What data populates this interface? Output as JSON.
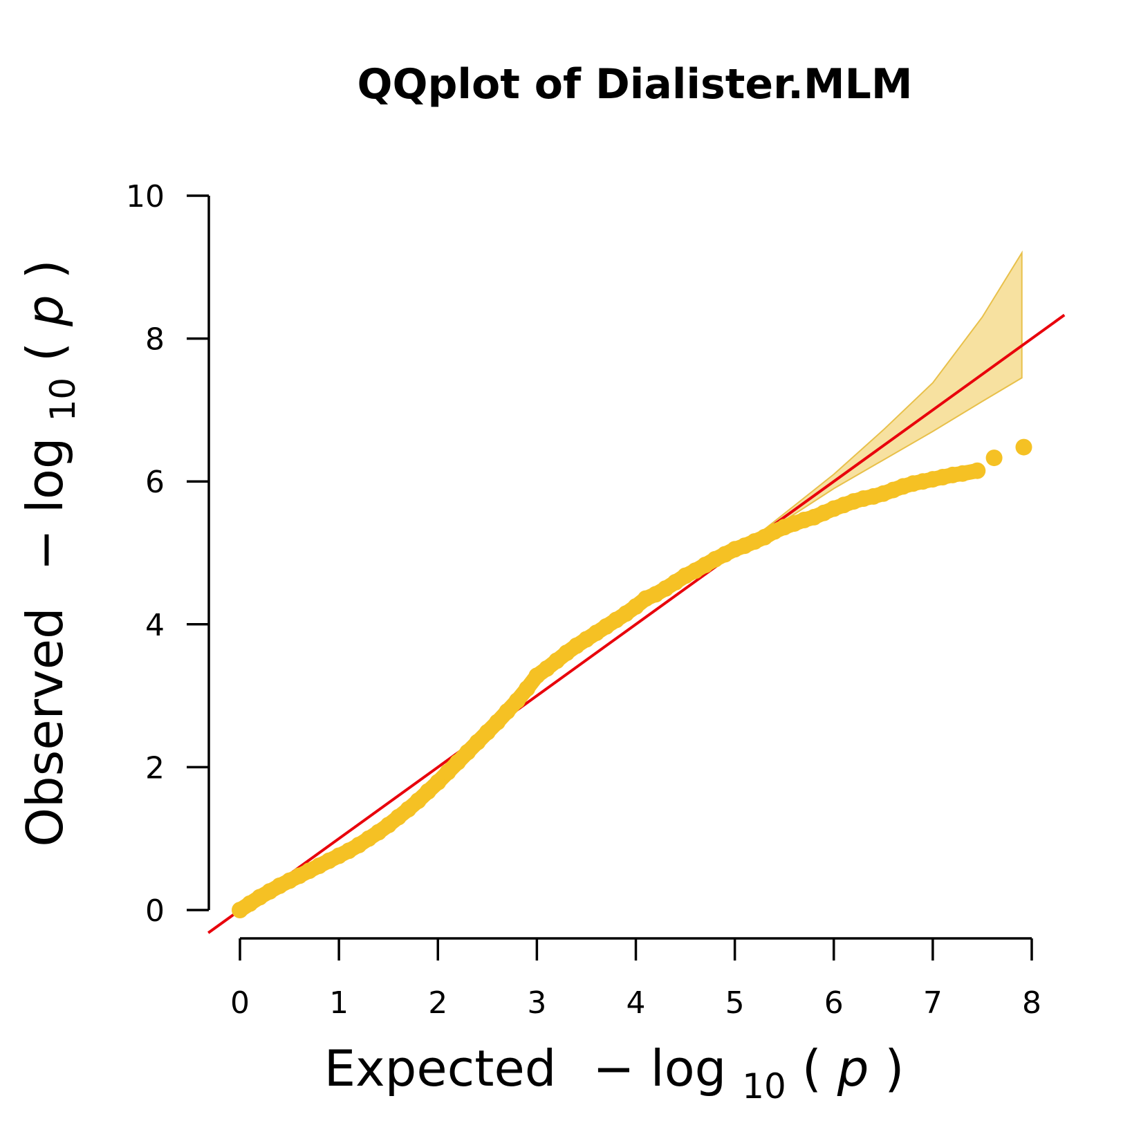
{
  "chart_data": {
    "type": "scatter",
    "title": "QQplot of Dialister.MLM",
    "xlabel": {
      "prefix": "Expected",
      "minus": "−",
      "log": "log",
      "subscript": "10",
      "open_paren": "(",
      "var": "p",
      "close_paren": ")"
    },
    "ylabel": {
      "prefix": "Observed",
      "minus": "−",
      "log": "log",
      "subscript": "10",
      "open_paren": "(",
      "var": "p",
      "close_paren": ")"
    },
    "xlim": [
      0,
      8
    ],
    "ylim": [
      0,
      10
    ],
    "x_ticks": [
      "0",
      "1",
      "2",
      "3",
      "4",
      "5",
      "6",
      "7",
      "8"
    ],
    "y_ticks": [
      "0",
      "2",
      "4",
      "6",
      "8",
      "10"
    ],
    "grid": false,
    "colors": {
      "points": "#F5C124",
      "reference_line": "#E8000B",
      "band_fill": "#F7E1A0",
      "band_edge": "#E8C04A"
    },
    "reference_line": {
      "slope": 1,
      "intercept": 0
    },
    "confidence_band": {
      "x": [
        5.0,
        5.5,
        6.0,
        6.5,
        7.0,
        7.5,
        7.9
      ],
      "upper": [
        5.0,
        5.55,
        6.1,
        6.72,
        7.38,
        8.3,
        9.2
      ],
      "lower": [
        5.0,
        5.45,
        5.9,
        6.3,
        6.7,
        7.12,
        7.45
      ]
    },
    "series": [
      {
        "x": [
          0.0,
          0.1,
          0.2,
          0.3,
          0.4,
          0.5,
          0.6,
          0.7,
          0.8,
          0.9,
          1.0,
          1.1,
          1.2,
          1.3,
          1.4,
          1.5,
          1.6,
          1.7,
          1.8,
          1.9,
          2.0,
          2.1,
          2.2,
          2.3,
          2.4,
          2.5,
          2.6,
          2.7,
          2.8,
          2.9,
          3.0,
          3.1,
          3.2,
          3.3,
          3.4,
          3.5,
          3.6,
          3.7,
          3.8,
          3.9,
          4.0,
          4.1,
          4.2,
          4.3,
          4.4,
          4.5,
          4.6,
          4.7,
          4.8,
          4.9,
          5.0,
          5.1,
          5.2,
          5.3,
          5.4,
          5.5,
          5.6,
          5.7,
          5.8,
          5.9,
          6.0,
          6.1,
          6.2,
          6.3,
          6.4,
          6.5,
          6.6,
          6.7,
          6.8,
          6.9,
          7.0,
          7.1,
          7.2,
          7.3,
          7.45,
          7.62,
          7.92
        ],
        "y": [
          0.0,
          0.09,
          0.18,
          0.26,
          0.34,
          0.41,
          0.48,
          0.55,
          0.62,
          0.69,
          0.76,
          0.83,
          0.91,
          1.0,
          1.09,
          1.19,
          1.3,
          1.41,
          1.53,
          1.66,
          1.79,
          1.93,
          2.07,
          2.21,
          2.35,
          2.49,
          2.63,
          2.78,
          2.93,
          3.1,
          3.28,
          3.38,
          3.49,
          3.6,
          3.7,
          3.79,
          3.88,
          3.97,
          4.06,
          4.15,
          4.25,
          4.36,
          4.42,
          4.5,
          4.59,
          4.68,
          4.75,
          4.83,
          4.91,
          4.98,
          5.05,
          5.1,
          5.16,
          5.22,
          5.3,
          5.36,
          5.41,
          5.46,
          5.5,
          5.56,
          5.62,
          5.67,
          5.72,
          5.76,
          5.79,
          5.83,
          5.88,
          5.93,
          5.97,
          6.0,
          6.03,
          6.06,
          6.09,
          6.11,
          6.15,
          6.33,
          6.48
        ]
      }
    ]
  }
}
